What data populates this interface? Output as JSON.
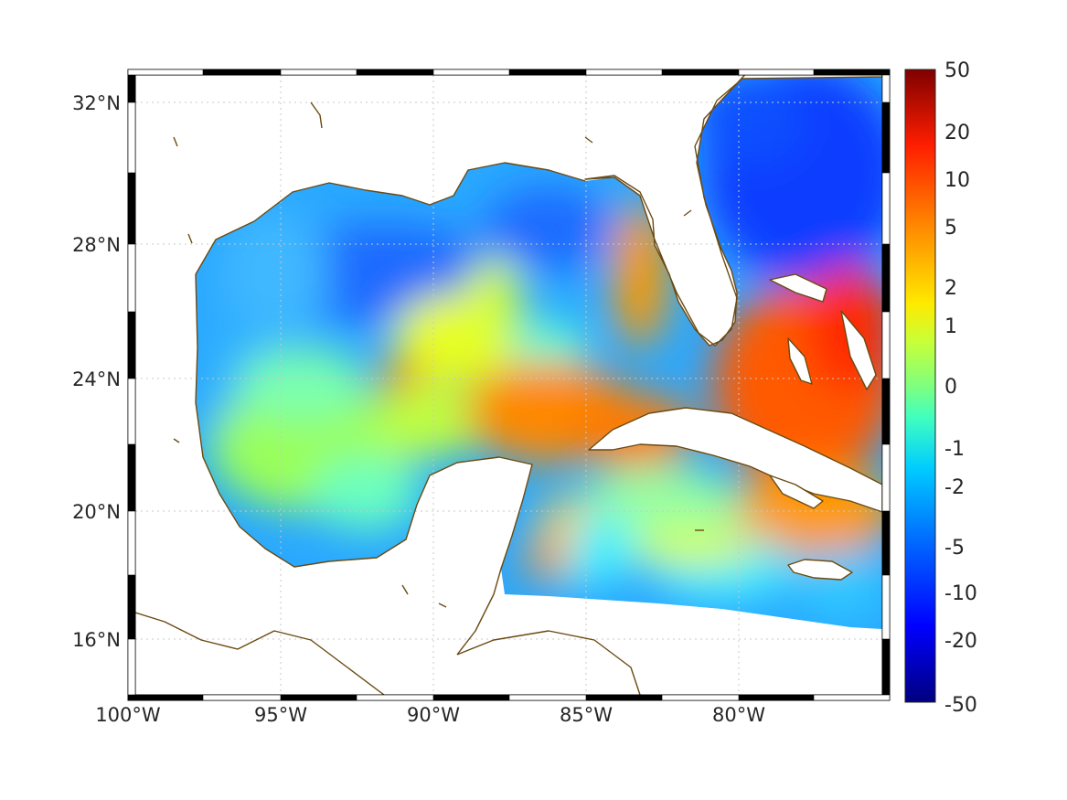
{
  "map": {
    "x_ticks": [
      "100°W",
      "95°W",
      "90°W",
      "85°W",
      "80°W"
    ],
    "y_ticks": [
      "32°N",
      "28°N",
      "24°N",
      "20°N",
      "16°N"
    ],
    "lon_range": [
      -100,
      -75
    ],
    "lat_range": [
      14.5,
      32.8
    ],
    "colors": {
      "coastline": "#6b4a12",
      "grid": "#c8c8c8",
      "frame_dark": "#000000",
      "frame_light": "#ffffff"
    }
  },
  "colorbar": {
    "ticks": [
      "50",
      "20",
      "10",
      "5",
      "2",
      "1",
      "0",
      "-1",
      "-2",
      "-5",
      "-10",
      "-20",
      "-50"
    ],
    "colormap": "jet",
    "range": [
      -50,
      50
    ]
  }
}
